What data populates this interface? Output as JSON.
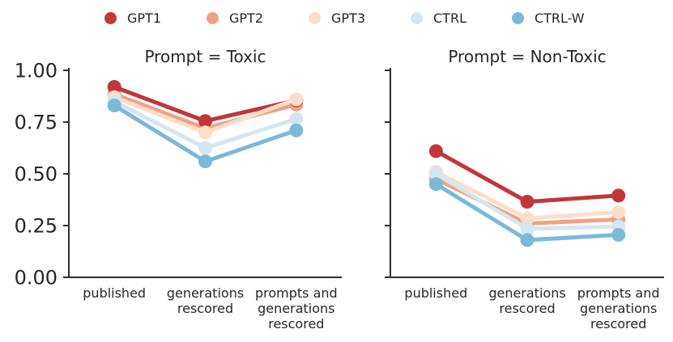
{
  "figure": {
    "background": "#ffffff",
    "text_color": "#262626",
    "spine_color": "#2e2e2e"
  },
  "legend": {
    "position": "top",
    "items": [
      {
        "label": "GPT1",
        "color": "#c13639"
      },
      {
        "label": "GPT2",
        "color": "#f1a183"
      },
      {
        "label": "GPT3",
        "color": "#fbdfca"
      },
      {
        "label": "CTRL",
        "color": "#d4e6f1"
      },
      {
        "label": "CTRL-W",
        "color": "#7cb9d9"
      }
    ]
  },
  "chart_data": [
    {
      "type": "line",
      "title": "Prompt = Toxic",
      "categories": [
        "published",
        "generations rescored",
        "prompts and generations rescored"
      ],
      "category_label_lines": [
        [
          "published"
        ],
        [
          "generations",
          "rescored"
        ],
        [
          "prompts and",
          "generations",
          "rescored"
        ]
      ],
      "ylim": [
        0,
        1
      ],
      "yticks": [
        0,
        0.25,
        0.5,
        0.75,
        1.0
      ],
      "ytick_labels": [
        "0.00",
        "0.25",
        "0.50",
        "0.75",
        "1.00"
      ],
      "grid": false,
      "legend_position": "top",
      "series": [
        {
          "name": "GPT1",
          "color": "#c13639",
          "z": 2,
          "values": [
            0.92,
            0.755,
            0.855
          ]
        },
        {
          "name": "GPT2",
          "color": "#f1a183",
          "z": 1,
          "values": [
            0.885,
            0.72,
            0.835
          ]
        },
        {
          "name": "GPT3",
          "color": "#fbdfca",
          "z": 3,
          "values": [
            0.87,
            0.7,
            0.86
          ]
        },
        {
          "name": "CTRL",
          "color": "#d4e6f1",
          "z": 4,
          "values": [
            0.85,
            0.625,
            0.765
          ]
        },
        {
          "name": "CTRL-W",
          "color": "#7cb9d9",
          "z": 5,
          "values": [
            0.83,
            0.56,
            0.71
          ]
        }
      ]
    },
    {
      "type": "line",
      "title": "Prompt = Non-Toxic",
      "categories": [
        "published",
        "generations rescored",
        "prompts and generations rescored"
      ],
      "category_label_lines": [
        [
          "published"
        ],
        [
          "generations",
          "rescored"
        ],
        [
          "prompts and",
          "generations",
          "rescored"
        ]
      ],
      "ylim": [
        0,
        1
      ],
      "yticks": [
        0,
        0.25,
        0.5,
        0.75,
        1.0
      ],
      "ytick_labels": [
        "0.00",
        "0.25",
        "0.50",
        "0.75",
        "1.00"
      ],
      "grid": false,
      "legend_position": "top",
      "series": [
        {
          "name": "GPT1",
          "color": "#c13639",
          "z": 2,
          "values": [
            0.61,
            0.365,
            0.395
          ]
        },
        {
          "name": "GPT2",
          "color": "#f1a183",
          "z": 1,
          "values": [
            0.475,
            0.26,
            0.28
          ]
        },
        {
          "name": "GPT3",
          "color": "#fbdfca",
          "z": 3,
          "values": [
            0.51,
            0.285,
            0.315
          ]
        },
        {
          "name": "CTRL",
          "color": "#d4e6f1",
          "z": 4,
          "values": [
            0.5,
            0.235,
            0.245
          ]
        },
        {
          "name": "CTRL-W",
          "color": "#7cb9d9",
          "z": 5,
          "values": [
            0.45,
            0.18,
            0.205
          ]
        }
      ]
    }
  ]
}
